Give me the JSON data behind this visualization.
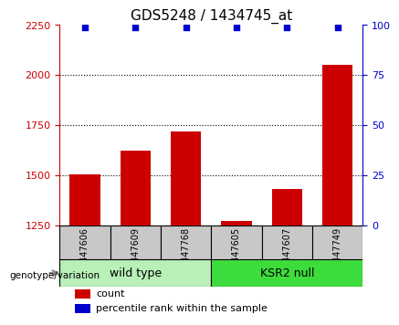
{
  "title": "GDS5248 / 1434745_at",
  "samples": [
    "GSM447606",
    "GSM447609",
    "GSM447768",
    "GSM447605",
    "GSM447607",
    "GSM447749"
  ],
  "counts": [
    1505,
    1625,
    1720,
    1270,
    1430,
    2050
  ],
  "percentiles": [
    99,
    99,
    99,
    99,
    99,
    99
  ],
  "groups": [
    {
      "label": "wild type",
      "indices": [
        0,
        1,
        2
      ],
      "color": "#90ee90"
    },
    {
      "label": "KSR2 null",
      "indices": [
        3,
        4,
        5
      ],
      "color": "#3ddc3d"
    }
  ],
  "bar_color": "#cc0000",
  "dot_color": "#0000cc",
  "ylim_left": [
    1250,
    2250
  ],
  "ylim_right": [
    0,
    100
  ],
  "yticks_left": [
    1250,
    1500,
    1750,
    2000,
    2250
  ],
  "yticks_right": [
    0,
    25,
    50,
    75,
    100
  ],
  "grid_values": [
    1500,
    1750,
    2000
  ],
  "title_fontsize": 11,
  "axis_label_color_left": "#cc0000",
  "axis_label_color_right": "#0000cc",
  "background_color": "#ffffff",
  "sample_box_color": "#c8c8c8",
  "group_box_color_wt": "#b8f0b8",
  "group_box_color_ks": "#3ddc3d"
}
